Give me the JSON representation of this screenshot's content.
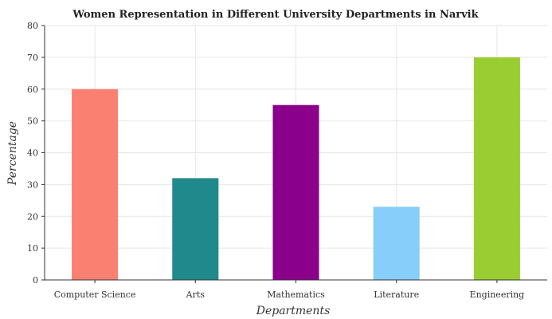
{
  "chart_data": {
    "type": "bar",
    "title": "Women Representation in Different University Departments in Narvik",
    "xlabel": "Departments",
    "ylabel": "Percentage",
    "categories": [
      "Computer Science",
      "Arts",
      "Mathematics",
      "Literature",
      "Engineering"
    ],
    "values": [
      60,
      32,
      55,
      23,
      70
    ],
    "colors": [
      "#fa8072",
      "#20898c",
      "#8b008b",
      "#87cefa",
      "#9acd32"
    ],
    "ylim": [
      0,
      80
    ],
    "yticks": [
      0,
      10,
      20,
      30,
      40,
      50,
      60,
      70,
      80
    ],
    "grid": true,
    "legend": "none"
  }
}
